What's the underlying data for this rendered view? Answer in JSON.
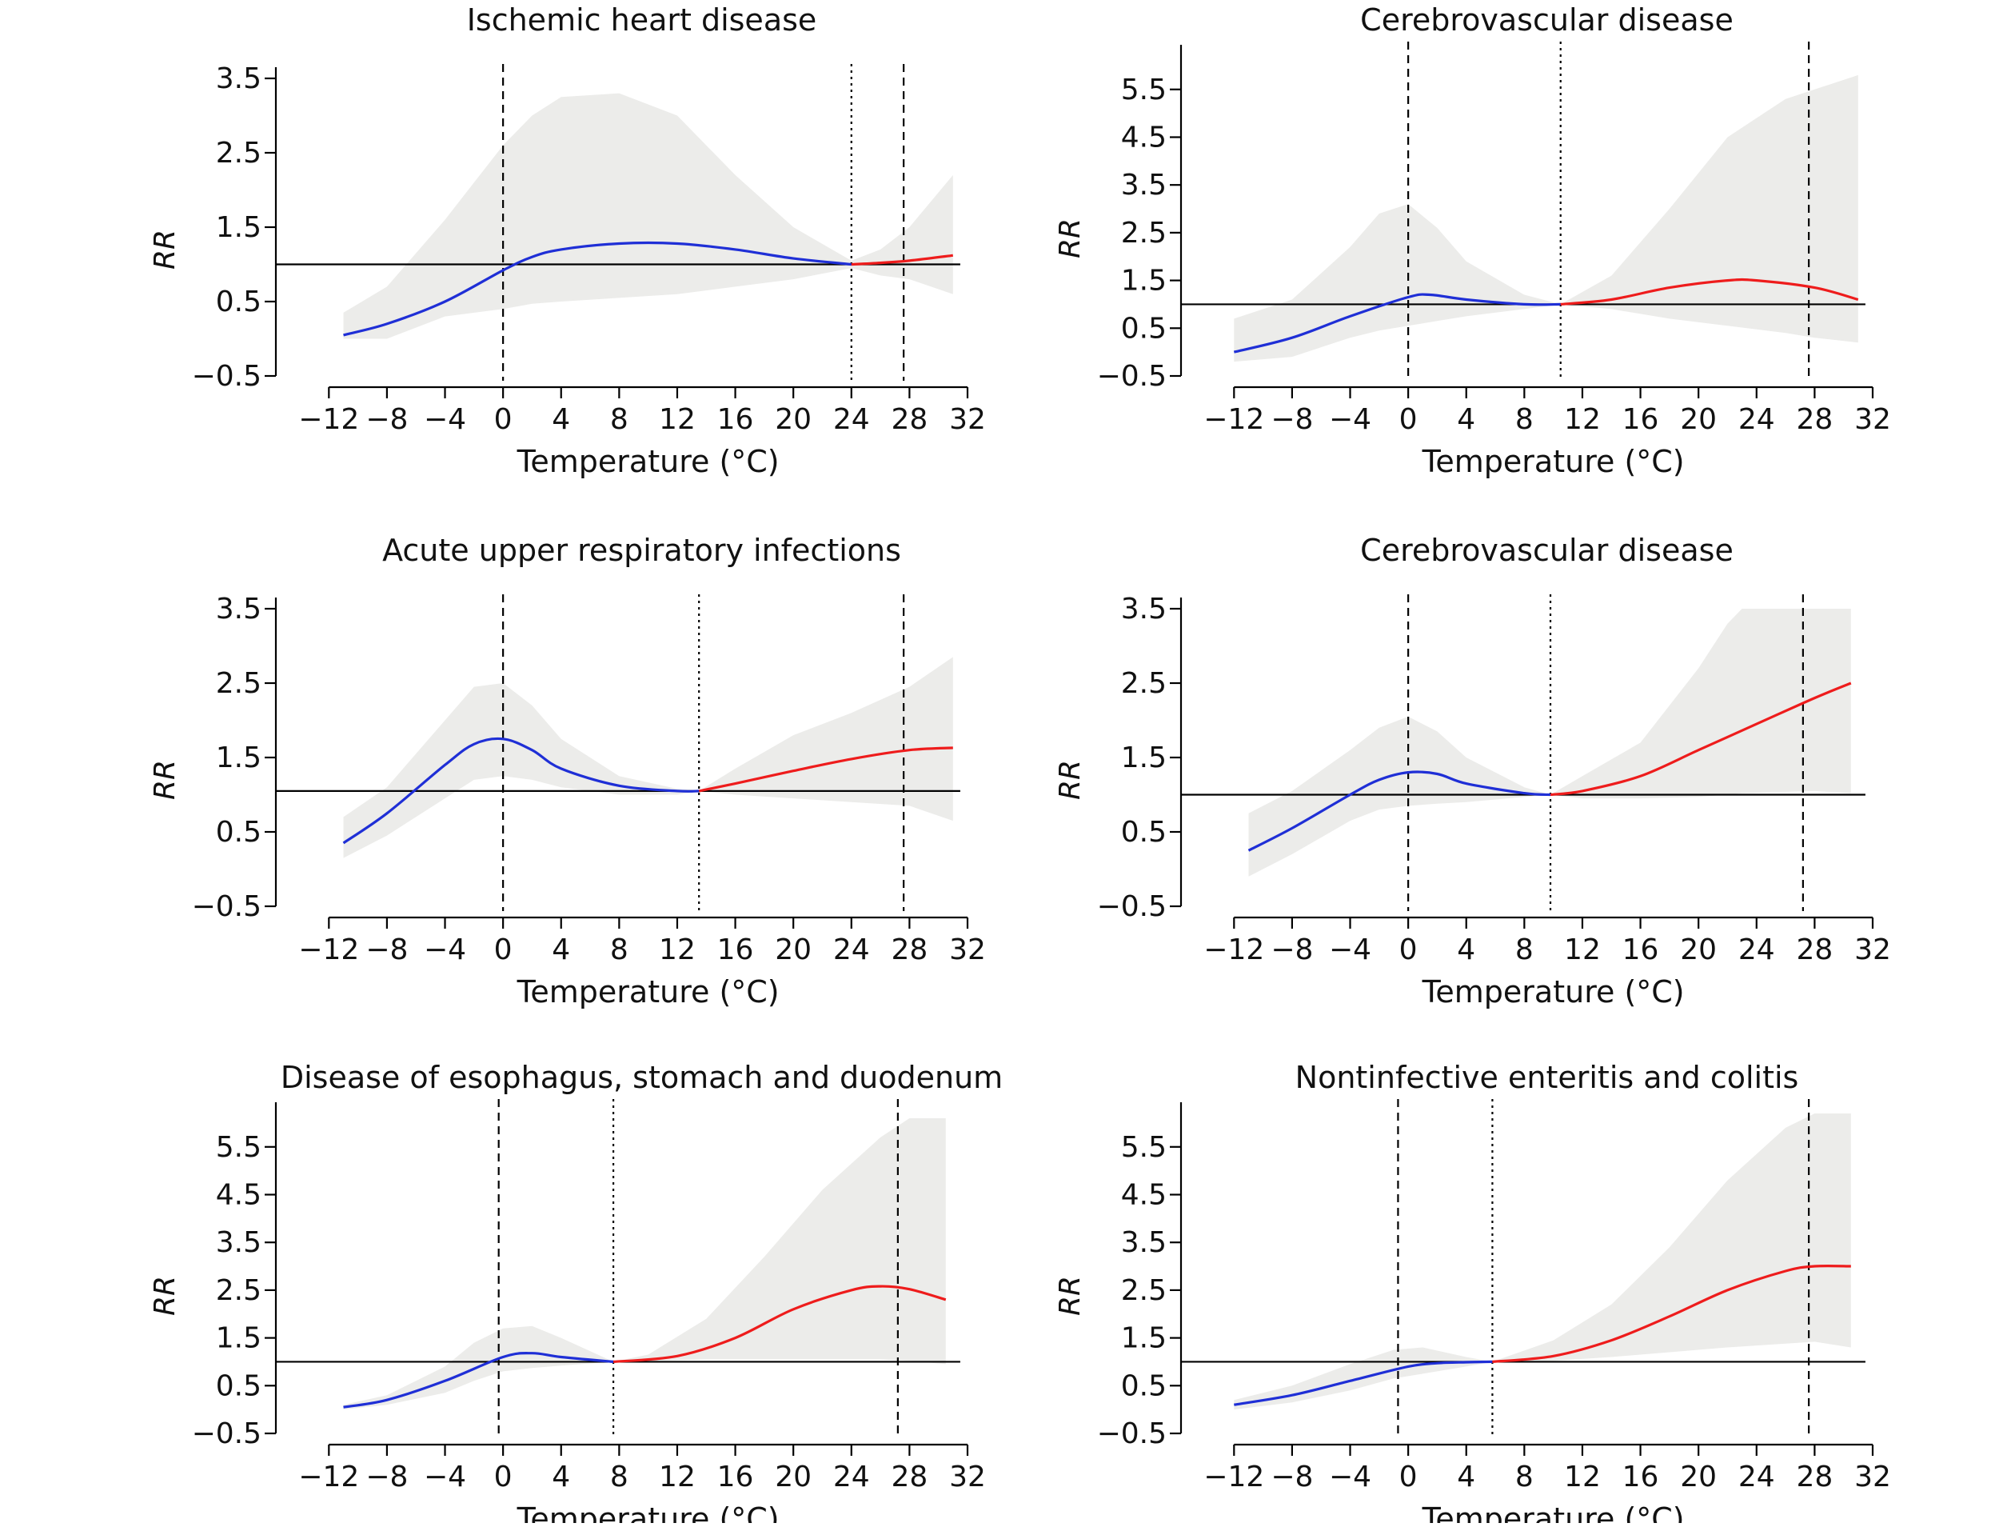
{
  "figure": {
    "x_axis_label": "Temperature (°C)",
    "y_axis_label": "RR",
    "colors": {
      "cold": "#1f2fd6",
      "hot": "#ee1c1c",
      "ci_band": "#ececea",
      "axis": "#000000"
    }
  },
  "chart_data": [
    {
      "type": "line",
      "title": "Ischemic heart disease",
      "xlabel": "Temperature (°C)",
      "ylabel": "RR",
      "xlim": [
        -14,
        32
      ],
      "ylim": [
        -0.5,
        3.5
      ],
      "xticks": [
        "−12",
        "−8",
        "−4",
        "0",
        "4",
        "8",
        "12",
        "16",
        "20",
        "24",
        "28",
        "32"
      ],
      "yticks": [
        "−0.5",
        "0.5",
        "1.5",
        "2.5",
        "3.5"
      ],
      "reference_rr": 1.0,
      "vlines": [
        {
          "x": 0,
          "style": "dashed"
        },
        {
          "x": 24,
          "style": "dotted"
        },
        {
          "x": 27.6,
          "style": "dashed"
        }
      ],
      "series": [
        {
          "color": "cold",
          "x": [
            -11,
            -8,
            -4,
            0,
            2,
            4,
            8,
            12,
            16,
            20,
            24
          ],
          "y": [
            0.05,
            0.2,
            0.5,
            0.92,
            1.1,
            1.2,
            1.28,
            1.28,
            1.2,
            1.08,
            1.0
          ]
        },
        {
          "color": "hot",
          "x": [
            24,
            26,
            28,
            31
          ],
          "y": [
            1.0,
            1.02,
            1.05,
            1.12
          ]
        }
      ],
      "ci_band": {
        "x": [
          -11,
          -8,
          -4,
          0,
          2,
          4,
          8,
          12,
          16,
          20,
          24,
          26,
          28,
          31
        ],
        "upper": [
          0.35,
          0.7,
          1.6,
          2.6,
          3.0,
          3.25,
          3.3,
          3.0,
          2.2,
          1.5,
          1.05,
          1.2,
          1.5,
          2.2
        ],
        "lower": [
          0.0,
          0.0,
          0.3,
          0.4,
          0.47,
          0.5,
          0.55,
          0.6,
          0.7,
          0.8,
          0.95,
          0.85,
          0.8,
          0.6
        ]
      }
    },
    {
      "type": "line",
      "title": "Cerebrovascular disease",
      "xlabel": "Temperature (°C)",
      "ylabel": "RR",
      "xlim": [
        -14,
        32
      ],
      "ylim": [
        -0.5,
        6.2
      ],
      "xticks": [
        "−12",
        "−8",
        "−4",
        "0",
        "4",
        "8",
        "12",
        "16",
        "20",
        "24",
        "28",
        "32"
      ],
      "yticks": [
        "−0.5",
        "0.5",
        "1.5",
        "2.5",
        "3.5",
        "4.5",
        "5.5"
      ],
      "reference_rr": 1.0,
      "vlines": [
        {
          "x": 0,
          "style": "dashed"
        },
        {
          "x": 10.5,
          "style": "dotted"
        },
        {
          "x": 27.6,
          "style": "dashed"
        }
      ],
      "series": [
        {
          "color": "cold",
          "x": [
            -12,
            -8,
            -4,
            0,
            1.5,
            4,
            8,
            10.5
          ],
          "y": [
            0.0,
            0.3,
            0.75,
            1.15,
            1.2,
            1.1,
            1.0,
            1.0
          ]
        },
        {
          "color": "hot",
          "x": [
            10.5,
            14,
            18,
            22,
            24,
            28,
            31
          ],
          "y": [
            1.0,
            1.1,
            1.35,
            1.5,
            1.5,
            1.35,
            1.1
          ]
        }
      ],
      "ci_band": {
        "x": [
          -12,
          -8,
          -4,
          -2,
          0,
          2,
          4,
          8,
          10.5,
          14,
          18,
          22,
          26,
          28,
          31
        ],
        "upper": [
          0.7,
          1.1,
          2.2,
          2.9,
          3.1,
          2.6,
          1.9,
          1.2,
          1.0,
          1.6,
          3.0,
          4.5,
          5.3,
          5.5,
          5.8
        ],
        "lower": [
          -0.2,
          -0.1,
          0.3,
          0.45,
          0.55,
          0.65,
          0.75,
          0.9,
          1.0,
          0.9,
          0.7,
          0.55,
          0.4,
          0.3,
          0.2
        ]
      }
    },
    {
      "type": "line",
      "title": "Acute upper respiratory infections",
      "xlabel": "Temperature (°C)",
      "ylabel": "RR",
      "xlim": [
        -14,
        32
      ],
      "ylim": [
        -0.5,
        3.5
      ],
      "xticks": [
        "−12",
        "−8",
        "−4",
        "0",
        "4",
        "8",
        "12",
        "16",
        "20",
        "24",
        "28",
        "32"
      ],
      "yticks": [
        "−0.5",
        "0.5",
        "1.5",
        "2.5",
        "3.5"
      ],
      "reference_rr": 1.05,
      "vlines": [
        {
          "x": 0,
          "style": "dashed"
        },
        {
          "x": 13.5,
          "style": "dotted"
        },
        {
          "x": 27.6,
          "style": "dashed"
        }
      ],
      "series": [
        {
          "color": "cold",
          "x": [
            -11,
            -8,
            -4,
            -2,
            0,
            2,
            4,
            8,
            12,
            13.5
          ],
          "y": [
            0.35,
            0.75,
            1.4,
            1.68,
            1.75,
            1.6,
            1.35,
            1.12,
            1.05,
            1.05
          ]
        },
        {
          "color": "hot",
          "x": [
            13.5,
            16,
            20,
            24,
            28,
            31
          ],
          "y": [
            1.05,
            1.15,
            1.32,
            1.48,
            1.6,
            1.63
          ]
        }
      ],
      "ci_band": {
        "x": [
          -11,
          -8,
          -4,
          -2,
          0,
          2,
          4,
          8,
          12,
          13.5,
          16,
          20,
          24,
          28,
          31
        ],
        "upper": [
          0.7,
          1.1,
          2.0,
          2.45,
          2.5,
          2.2,
          1.75,
          1.25,
          1.08,
          1.05,
          1.35,
          1.8,
          2.1,
          2.45,
          2.85
        ],
        "lower": [
          0.15,
          0.45,
          0.95,
          1.2,
          1.25,
          1.2,
          1.1,
          1.0,
          1.0,
          1.05,
          1.0,
          0.95,
          0.9,
          0.85,
          0.65
        ]
      }
    },
    {
      "type": "line",
      "title": "Cerebrovascular disease",
      "xlabel": "Temperature (°C)",
      "ylabel": "RR",
      "xlim": [
        -14,
        32
      ],
      "ylim": [
        -0.5,
        3.5
      ],
      "xticks": [
        "−12",
        "−8",
        "−4",
        "0",
        "4",
        "8",
        "12",
        "16",
        "20",
        "24",
        "28",
        "32"
      ],
      "yticks": [
        "−0.5",
        "0.5",
        "1.5",
        "2.5",
        "3.5"
      ],
      "reference_rr": 1.0,
      "vlines": [
        {
          "x": 0,
          "style": "dashed"
        },
        {
          "x": 9.8,
          "style": "dotted"
        },
        {
          "x": 27.2,
          "style": "dashed"
        }
      ],
      "series": [
        {
          "color": "cold",
          "x": [
            -11,
            -8,
            -4,
            -2,
            0,
            2,
            4,
            8,
            9.8
          ],
          "y": [
            0.25,
            0.55,
            1.0,
            1.2,
            1.3,
            1.28,
            1.15,
            1.02,
            1.0
          ]
        },
        {
          "color": "hot",
          "x": [
            9.8,
            12,
            16,
            20,
            24,
            28,
            30.5
          ],
          "y": [
            1.0,
            1.05,
            1.25,
            1.6,
            1.95,
            2.3,
            2.5
          ]
        }
      ],
      "ci_band": {
        "x": [
          -11,
          -8,
          -4,
          -2,
          0,
          2,
          4,
          8,
          9.8,
          12,
          16,
          20,
          22,
          23,
          28,
          30.5
        ],
        "upper": [
          0.75,
          1.05,
          1.6,
          1.9,
          2.05,
          1.85,
          1.5,
          1.1,
          1.0,
          1.25,
          1.7,
          2.7,
          3.3,
          3.5,
          3.5,
          3.5
        ],
        "lower": [
          -0.1,
          0.2,
          0.65,
          0.8,
          0.85,
          0.88,
          0.9,
          0.97,
          1.0,
          0.95,
          0.95,
          0.97,
          1.0,
          1.02,
          1.05,
          1.02
        ]
      }
    },
    {
      "type": "line",
      "title": "Disease of esophagus, stomach and duodenum",
      "xlabel": "Temperature (°C)",
      "ylabel": "RR",
      "xlim": [
        -14,
        32
      ],
      "ylim": [
        -0.5,
        6.2
      ],
      "xticks": [
        "−12",
        "−8",
        "−4",
        "0",
        "4",
        "8",
        "12",
        "16",
        "20",
        "24",
        "28",
        "32"
      ],
      "yticks": [
        "−0.5",
        "0.5",
        "1.5",
        "2.5",
        "3.5",
        "4.5",
        "5.5"
      ],
      "reference_rr": 1.0,
      "vlines": [
        {
          "x": -0.3,
          "style": "dashed"
        },
        {
          "x": 7.6,
          "style": "dotted"
        },
        {
          "x": 27.2,
          "style": "dashed"
        }
      ],
      "series": [
        {
          "color": "cold",
          "x": [
            -11,
            -8,
            -4,
            0,
            2,
            4,
            7.6
          ],
          "y": [
            0.05,
            0.2,
            0.6,
            1.1,
            1.18,
            1.1,
            1.0
          ]
        },
        {
          "color": "hot",
          "x": [
            7.6,
            12,
            16,
            20,
            24,
            26,
            28,
            30.5
          ],
          "y": [
            1.0,
            1.12,
            1.5,
            2.1,
            2.5,
            2.58,
            2.52,
            2.3
          ]
        }
      ],
      "ci_band": {
        "x": [
          -11,
          -8,
          -4,
          -2,
          0,
          2,
          4,
          7.6,
          10,
          14,
          18,
          22,
          26,
          28,
          30.5
        ],
        "upper": [
          0.1,
          0.3,
          0.9,
          1.4,
          1.7,
          1.75,
          1.5,
          1.0,
          1.15,
          1.9,
          3.2,
          4.6,
          5.7,
          6.1,
          6.1
        ],
        "lower": [
          0.0,
          0.1,
          0.35,
          0.6,
          0.8,
          0.87,
          0.92,
          1.0,
          1.02,
          1.05,
          1.05,
          1.05,
          1.05,
          1.02,
          0.95
        ]
      }
    },
    {
      "type": "line",
      "title": "Nontinfective enteritis and colitis",
      "xlabel": "Temperature (°C)",
      "ylabel": "RR",
      "xlim": [
        -14,
        32
      ],
      "ylim": [
        -0.5,
        6.2
      ],
      "xticks": [
        "−12",
        "−8",
        "−4",
        "0",
        "4",
        "8",
        "12",
        "16",
        "20",
        "24",
        "28",
        "32"
      ],
      "yticks": [
        "−0.5",
        "0.5",
        "1.5",
        "2.5",
        "3.5",
        "4.5",
        "5.5"
      ],
      "reference_rr": 1.0,
      "vlines": [
        {
          "x": -0.7,
          "style": "dashed"
        },
        {
          "x": 5.8,
          "style": "dotted"
        },
        {
          "x": 27.6,
          "style": "dashed"
        }
      ],
      "series": [
        {
          "color": "cold",
          "x": [
            -12,
            -8,
            -4,
            0,
            2,
            4,
            5.8
          ],
          "y": [
            0.1,
            0.3,
            0.6,
            0.9,
            0.97,
            0.99,
            1.0
          ]
        },
        {
          "color": "hot",
          "x": [
            5.8,
            10,
            14,
            18,
            22,
            26,
            28,
            30.5
          ],
          "y": [
            1.0,
            1.12,
            1.45,
            1.95,
            2.5,
            2.9,
            3.0,
            3.0
          ]
        }
      ],
      "ci_band": {
        "x": [
          -12,
          -8,
          -4,
          -1,
          1,
          4,
          5.8,
          10,
          14,
          18,
          22,
          26,
          28,
          30.5
        ],
        "upper": [
          0.2,
          0.5,
          0.95,
          1.25,
          1.3,
          1.1,
          1.0,
          1.45,
          2.2,
          3.4,
          4.8,
          5.9,
          6.2,
          6.2
        ],
        "lower": [
          0.0,
          0.15,
          0.4,
          0.65,
          0.75,
          0.9,
          1.0,
          1.02,
          1.1,
          1.2,
          1.3,
          1.38,
          1.42,
          1.3
        ]
      }
    }
  ]
}
